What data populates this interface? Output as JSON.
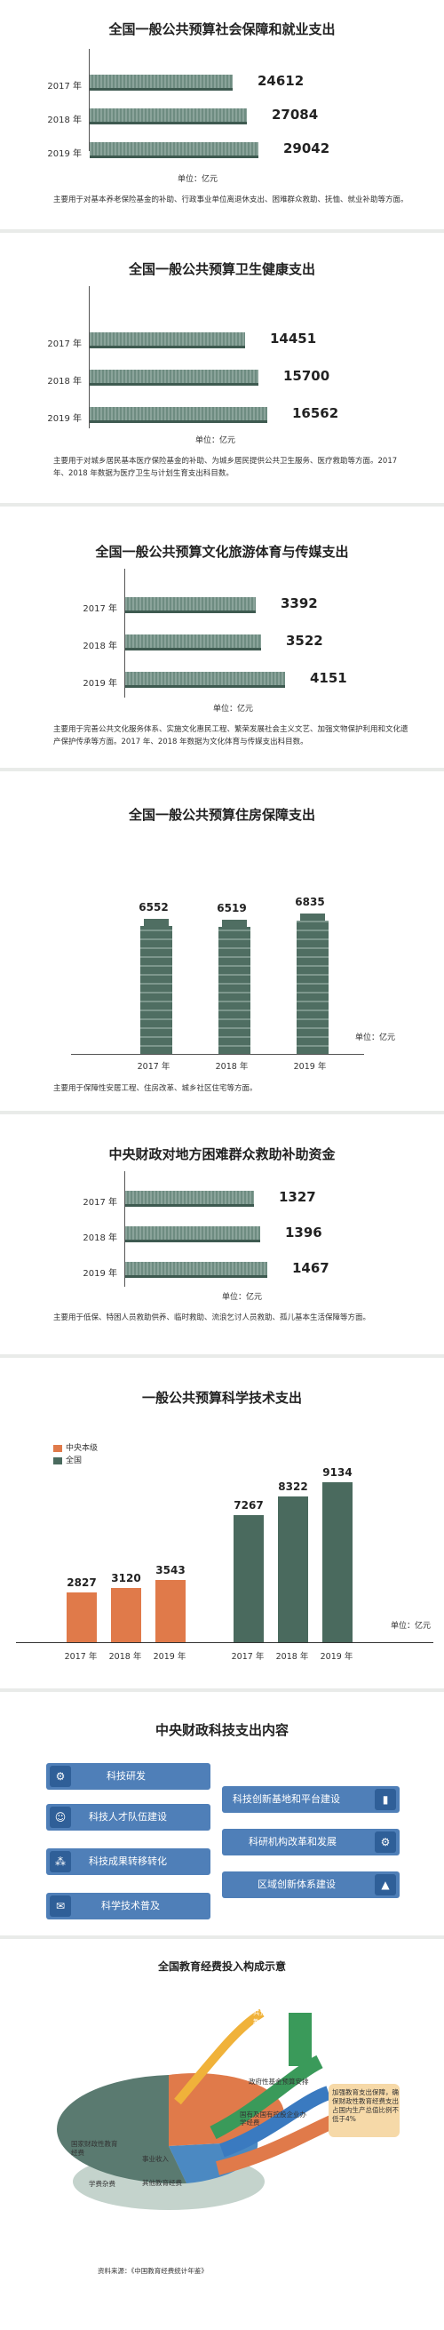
{
  "chart_data": [
    {
      "type": "bar",
      "orientation": "horizontal",
      "title": "全国一般公共预算社会保障和就业支出",
      "unit": "单位：亿元",
      "categories": [
        "2017 年",
        "2018 年",
        "2019 年"
      ],
      "values": [
        24612,
        27084,
        29042
      ],
      "value_labels": [
        "24612",
        "27084",
        "29042"
      ],
      "note": "主要用于对基本养老保险基金的补助、行政事业单位离退休支出、困难群众救助、抚恤、就业补助等方面。"
    },
    {
      "type": "bar",
      "orientation": "horizontal",
      "title": "全国一般公共预算卫生健康支出",
      "unit": "单位：亿元",
      "categories": [
        "2017 年",
        "2018 年",
        "2019 年"
      ],
      "values": [
        14451,
        15700,
        16562
      ],
      "value_labels": [
        "14451",
        "15700",
        "16562"
      ],
      "note": "主要用于对城乡居民基本医疗保险基金的补助、为城乡居民提供公共卫生服务、医疗救助等方面。2017 年、2018 年数据为医疗卫生与计划生育支出科目数。"
    },
    {
      "type": "bar",
      "orientation": "horizontal",
      "title": "全国一般公共预算文化旅游体育与传媒支出",
      "unit": "单位：亿元",
      "categories": [
        "2017 年",
        "2018 年",
        "2019 年"
      ],
      "values": [
        3392,
        3522,
        4151
      ],
      "value_labels": [
        "3392",
        "3522",
        "4151"
      ],
      "note": "主要用于完善公共文化服务体系、实施文化惠民工程、繁荣发展社会主义文艺、加强文物保护利用和文化遗产保护传承等方面。2017 年、2018 年数据为文化体育与传媒支出科目数。"
    },
    {
      "type": "bar",
      "orientation": "vertical",
      "title": "全国一般公共预算住房保障支出",
      "unit": "单位：亿元",
      "categories": [
        "2017 年",
        "2018 年",
        "2019 年"
      ],
      "values": [
        6552,
        6519,
        6835
      ],
      "value_labels": [
        "6552",
        "6519",
        "6835"
      ],
      "note": "主要用于保障性安居工程、住房改革、城乡社区住宅等方面。"
    },
    {
      "type": "bar",
      "orientation": "horizontal",
      "title": "中央财政对地方困难群众救助补助资金",
      "unit": "单位：亿元",
      "categories": [
        "2017 年",
        "2018 年",
        "2019 年"
      ],
      "values": [
        1327,
        1396,
        1467
      ],
      "value_labels": [
        "1327",
        "1396",
        "1467"
      ],
      "note": "主要用于低保、特困人员救助供养、临时救助、流浪乞讨人员救助、孤儿基本生活保障等方面。"
    },
    {
      "type": "bar",
      "orientation": "vertical",
      "title": "一般公共预算科学技术支出",
      "unit": "单位：亿元",
      "categories": [
        "2017 年",
        "2018 年",
        "2019 年"
      ],
      "series": [
        {
          "name": "中央本级",
          "values": [
            2827,
            3120,
            3543
          ],
          "value_labels": [
            "2827",
            "3120",
            "3543"
          ],
          "color": "#e07a4a"
        },
        {
          "name": "全国",
          "values": [
            7267,
            8322,
            9134
          ],
          "value_labels": [
            "7267",
            "8322",
            "9134"
          ],
          "color": "#4a6a5e"
        }
      ]
    }
  ],
  "colors": {
    "bar": "#6e8c81",
    "bar_dark": "#3e5a50",
    "building": "#4f6e62",
    "orange": "#e07a4a",
    "tile": "#4f7fb8",
    "tile_icon": "#2f5f98"
  },
  "tech": {
    "title": "中央财政科技支出内容",
    "left_items": [
      {
        "label": "科技研发",
        "icon": "gear-icon"
      },
      {
        "label": "科技人才队伍建设",
        "icon": "people-icon"
      },
      {
        "label": "科技成果转移转化",
        "icon": "network-icon"
      },
      {
        "label": "科学技术普及",
        "icon": "speech-icon"
      }
    ],
    "right_items": [
      {
        "label": "科技创新基地和平台建设",
        "icon": "bar-chart-icon"
      },
      {
        "label": "科研机构改革和发展",
        "icon": "gear-icon"
      },
      {
        "label": "区域创新体系建设",
        "icon": "mountain-icon"
      }
    ]
  },
  "edu": {
    "title": "全国教育经费投入构成示意",
    "pie_labels": [
      "国家财政性教育经费",
      "事业收入",
      "学费杂费",
      "其他教育经费"
    ],
    "arrows": [
      "一般公共预算教育支出",
      "政府性基金预算安排",
      "国有及国有控股企业办学经费"
    ],
    "note": "加强教育支出保障，确保财政性教育经费支出占国内生产总值比例不低于4%",
    "source": "资料来源：《中国教育经费统计年鉴》"
  }
}
